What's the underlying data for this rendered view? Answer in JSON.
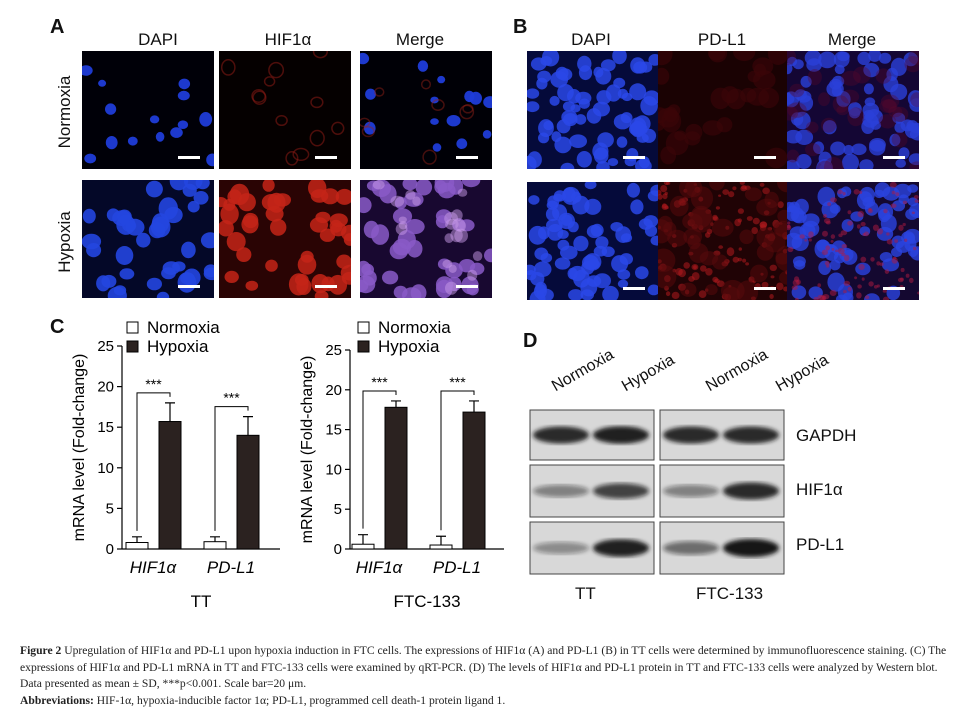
{
  "panels": {
    "A": {
      "letter": "A",
      "columns": [
        "DAPI",
        "HIF1α",
        "Merge"
      ],
      "rows": [
        "Normoxia",
        "Hypoxia"
      ]
    },
    "B": {
      "letter": "B",
      "columns": [
        "DAPI",
        "PD-L1",
        "Merge"
      ]
    },
    "C": {
      "letter": "C"
    },
    "D": {
      "letter": "D",
      "lanes": [
        "Normoxia",
        "Hypoxia",
        "Normoxia",
        "Hypoxia"
      ],
      "proteins": [
        "GAPDH",
        "HIF1α",
        "PD-L1"
      ],
      "cell_lines": [
        "TT",
        "FTC-133"
      ]
    }
  },
  "colors": {
    "dapi": "#1428c8",
    "hif": "#c81e1e",
    "hypoxia_bar": "#2b2220",
    "normoxia_bar": "#ffffff"
  },
  "chart_data": [
    {
      "type": "bar",
      "title": "TT",
      "categories": [
        "HIF1α",
        "PD-L1"
      ],
      "ylabel": "mRNA level (Fold-change)",
      "ylim": [
        0,
        25
      ],
      "yticks": [
        0,
        5,
        10,
        15,
        20,
        25
      ],
      "legend": {
        "position": "top",
        "entries": [
          "Normoxia",
          "Hypoxia"
        ]
      },
      "series": [
        {
          "name": "Normoxia",
          "values": [
            0.8,
            0.9
          ],
          "errors": [
            0.7,
            0.6
          ]
        },
        {
          "name": "Hypoxia",
          "values": [
            15.7,
            14.0
          ],
          "errors": [
            2.3,
            2.3
          ]
        }
      ],
      "annotations": [
        "***",
        "***"
      ]
    },
    {
      "type": "bar",
      "title": "FTC-133",
      "categories": [
        "HIF1α",
        "PD-L1"
      ],
      "ylabel": "mRNA level (Fold-change)",
      "ylim": [
        0,
        25
      ],
      "yticks": [
        0,
        5,
        10,
        15,
        20,
        25
      ],
      "legend": {
        "position": "top",
        "entries": [
          "Normoxia",
          "Hypoxia"
        ]
      },
      "series": [
        {
          "name": "Normoxia",
          "values": [
            0.6,
            0.5
          ],
          "errors": [
            1.2,
            1.1
          ]
        },
        {
          "name": "Hypoxia",
          "values": [
            17.8,
            17.2
          ],
          "errors": [
            0.8,
            1.4
          ]
        }
      ],
      "annotations": [
        "***",
        "***"
      ]
    }
  ],
  "caption": {
    "fig_label": "Figure 2",
    "text": " Upregulation of HIF1α and PD-L1 upon hypoxia induction in FTC cells. The expressions of HIF1α (A) and PD-L1 (B) in TT cells were determined by immunofluorescence staining. (C) The expressions of HIF1α and PD-L1 mRNA in TT and FTC-133 cells were examined by qRT-PCR. (D) The levels of HIF1α and PD-L1 protein in TT and FTC-133 cells were analyzed by Western blot. Data presented as mean ± SD, ***p<0.001. Scale bar=20 μm.",
    "abbr_label": "Abbreviations:",
    "abbr_text": " HIF-1α, hypoxia-inducible factor 1α; PD-L1, programmed cell death-1 protein ligand 1."
  }
}
